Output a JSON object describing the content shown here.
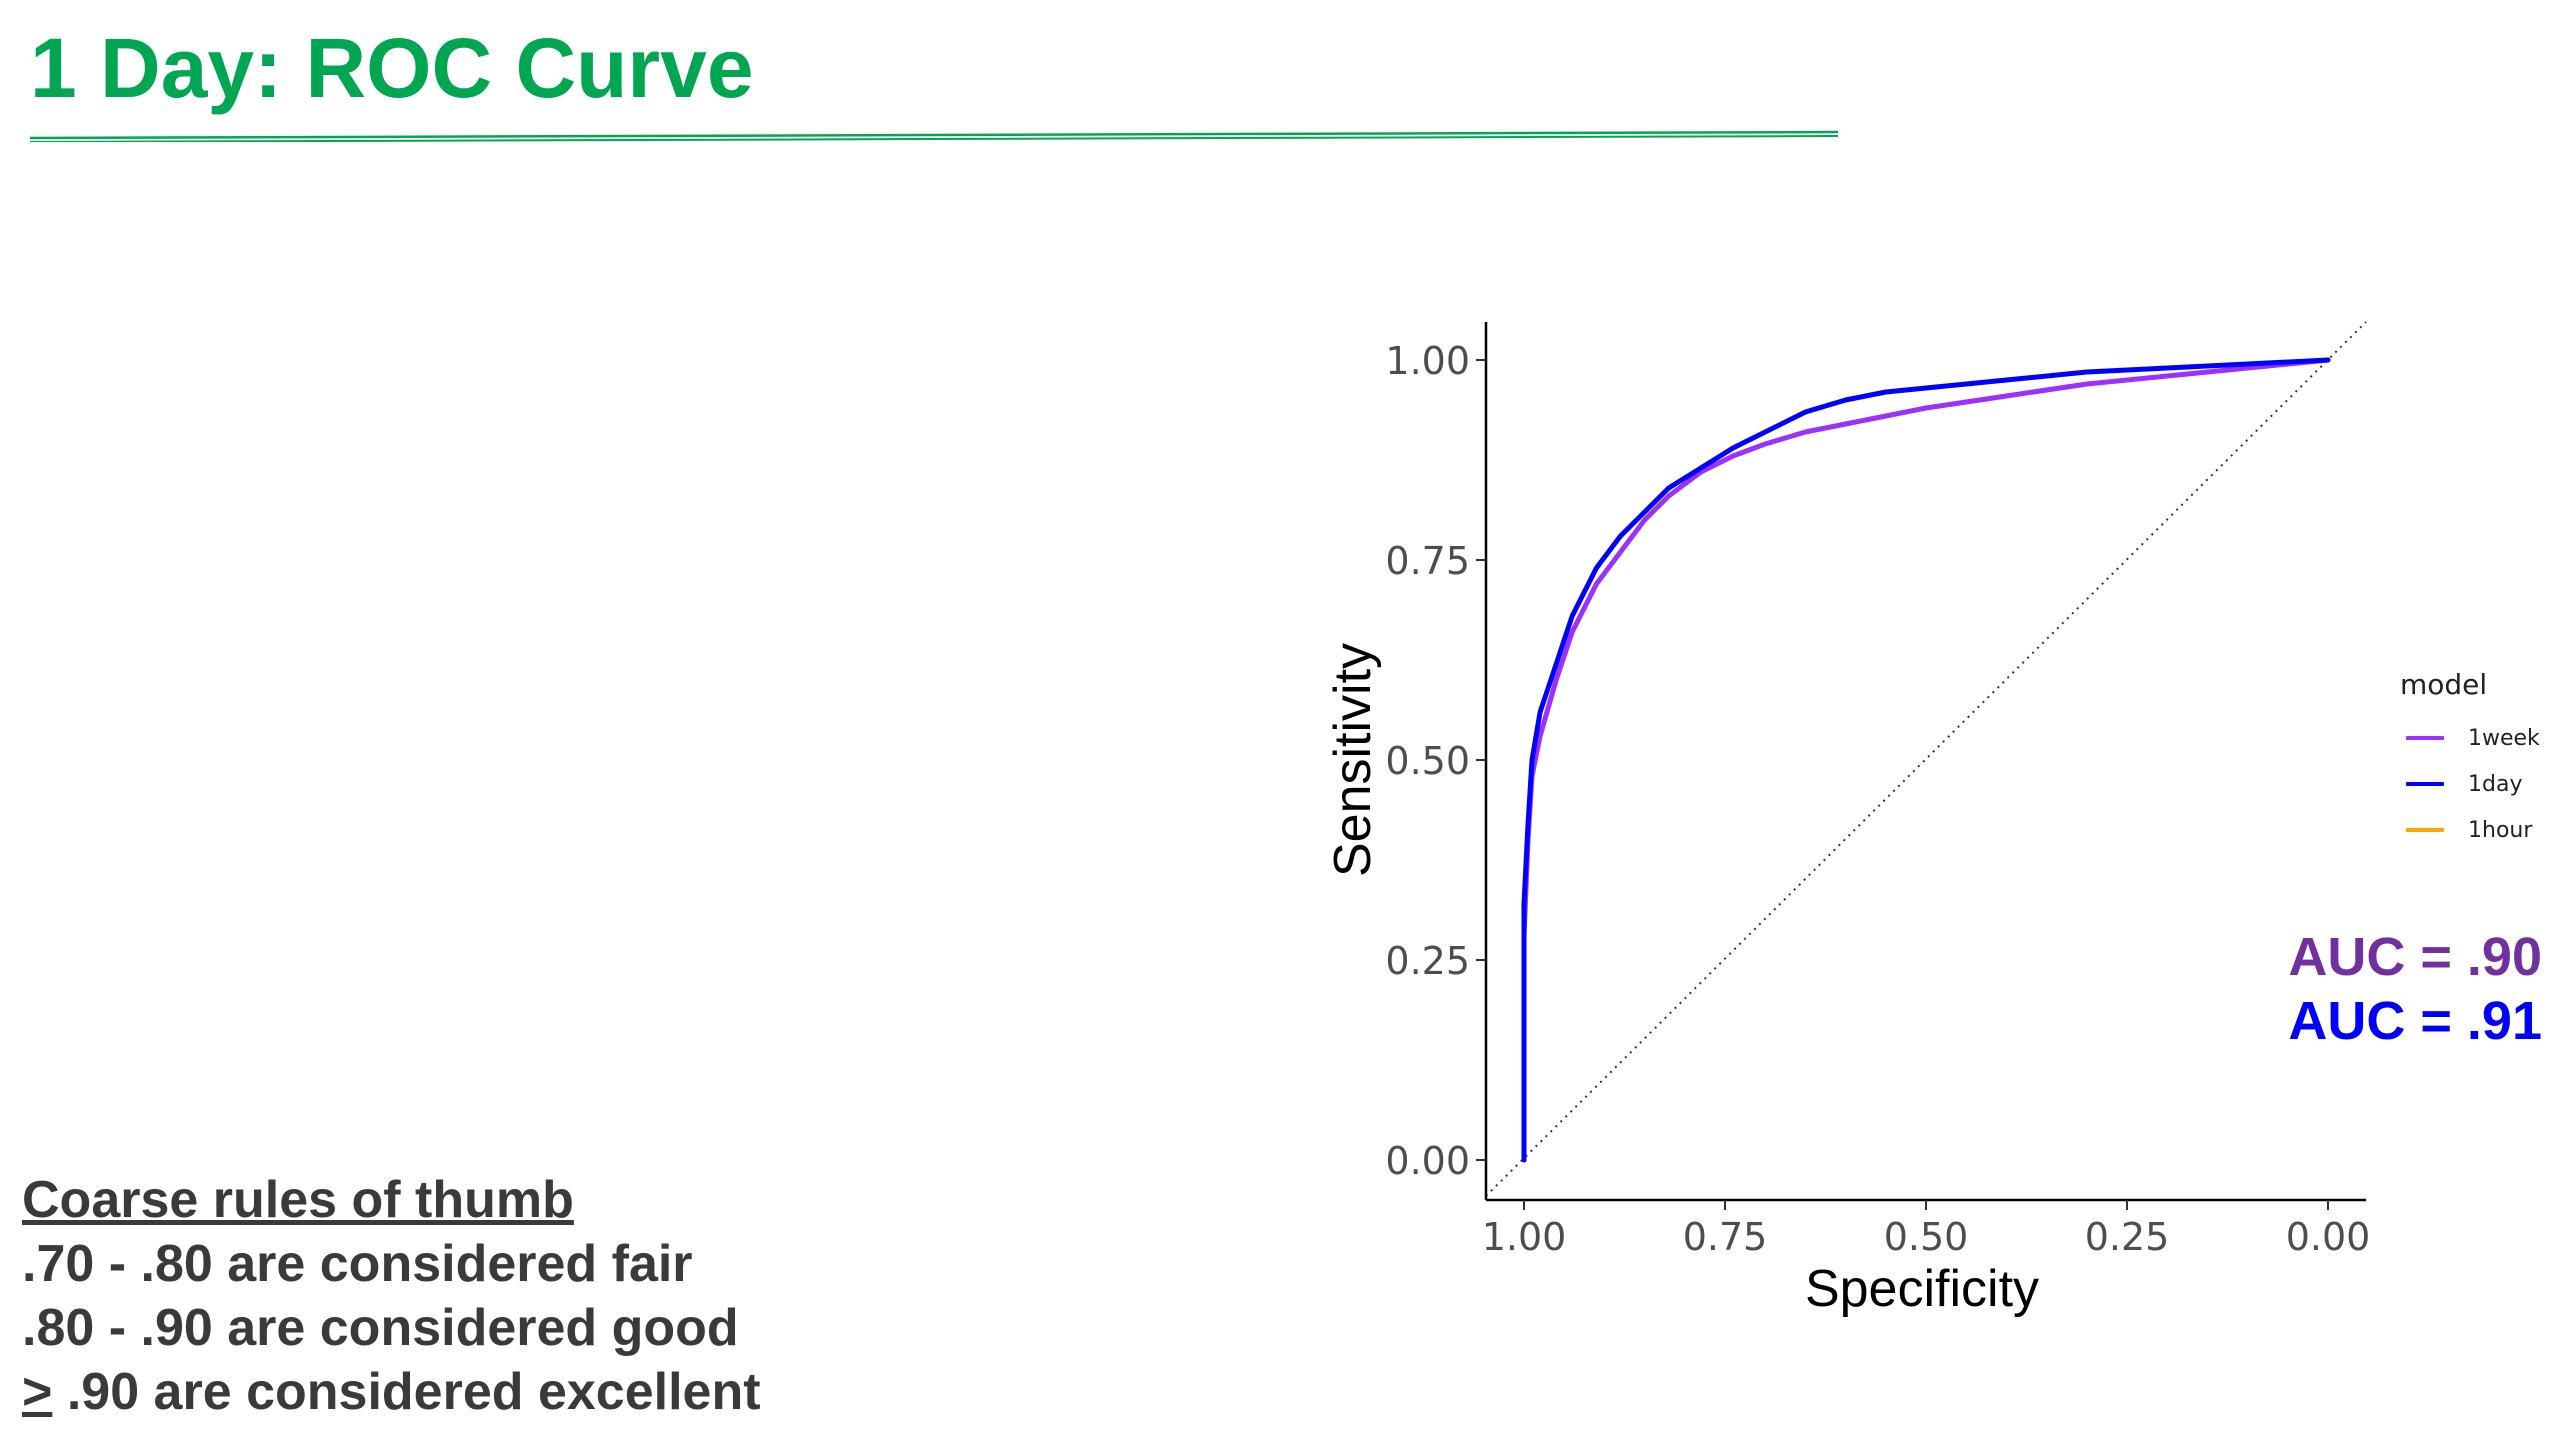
{
  "slide": {
    "title": "1 Day: ROC Curve",
    "title_color": "#00a651"
  },
  "rules": {
    "heading": "Coarse rules of thumb",
    "lines": [
      ".70 - .80 are considered fair",
      ".80 - .90 are considered good"
    ],
    "last_symbol": ">",
    "last_text": " .90 are considered excellent"
  },
  "auc": [
    {
      "label": "AUC = .90",
      "color": "#7030a0"
    },
    {
      "label": "AUC = .91",
      "color": "#0000ff"
    }
  ],
  "chart_data": {
    "type": "line",
    "xlabel": "Specificity",
    "ylabel": "Sensitivity",
    "x_reversed": true,
    "xlim": [
      1.0,
      0.0
    ],
    "ylim": [
      0.0,
      1.0
    ],
    "x_ticks": [
      "1.00",
      "0.75",
      "0.50",
      "0.25",
      "0.00"
    ],
    "y_ticks": [
      "0.00",
      "0.25",
      "0.50",
      "0.75",
      "1.00"
    ],
    "grid": false,
    "legend": {
      "title": "model",
      "position": "right"
    },
    "reference_line": {
      "style": "dotted",
      "from": [
        1.0,
        0.0
      ],
      "to": [
        0.0,
        1.0
      ]
    },
    "series": [
      {
        "name": "1week",
        "color": "#9b30ff",
        "x": [
          1.0,
          1.0,
          0.995,
          0.99,
          0.98,
          0.96,
          0.94,
          0.91,
          0.88,
          0.85,
          0.82,
          0.78,
          0.74,
          0.7,
          0.65,
          0.6,
          0.55,
          0.5,
          0.4,
          0.3,
          0.2,
          0.1,
          0.0
        ],
        "y": [
          0.0,
          0.28,
          0.4,
          0.48,
          0.53,
          0.6,
          0.66,
          0.72,
          0.76,
          0.8,
          0.83,
          0.86,
          0.88,
          0.895,
          0.91,
          0.92,
          0.93,
          0.94,
          0.955,
          0.97,
          0.98,
          0.99,
          1.0
        ]
      },
      {
        "name": "1day",
        "color": "#0000ff",
        "x": [
          1.0,
          1.0,
          0.995,
          0.99,
          0.98,
          0.96,
          0.94,
          0.91,
          0.88,
          0.85,
          0.82,
          0.78,
          0.74,
          0.7,
          0.65,
          0.6,
          0.55,
          0.5,
          0.4,
          0.3,
          0.2,
          0.1,
          0.0
        ],
        "y": [
          0.0,
          0.32,
          0.42,
          0.5,
          0.56,
          0.62,
          0.68,
          0.74,
          0.78,
          0.81,
          0.84,
          0.865,
          0.89,
          0.91,
          0.935,
          0.95,
          0.96,
          0.965,
          0.975,
          0.985,
          0.99,
          0.995,
          1.0
        ]
      },
      {
        "name": "1hour",
        "color": "#ffa500",
        "x": [],
        "y": []
      }
    ]
  }
}
